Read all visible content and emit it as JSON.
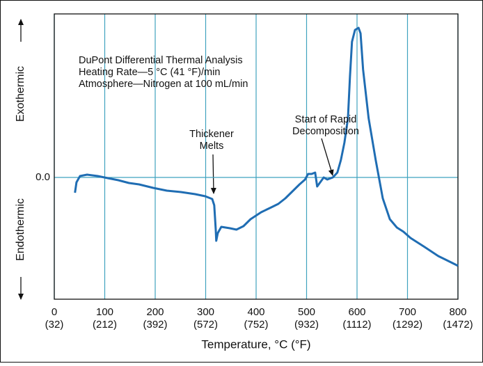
{
  "chart_data": {
    "type": "line",
    "xlabel": "Temperature, °C (°F)",
    "ylabel_top": "Exothermic",
    "ylabel_bottom": "Endothermic",
    "annotations": [
      {
        "lines": [
          "DuPont Differential Thermal Analysis",
          "Heating Rate—5 °C (41 °F)/min",
          "Atmosphere—Nitrogen at 100 mL/min"
        ]
      },
      {
        "lines": [
          "Thickener",
          "Melts"
        ]
      },
      {
        "lines": [
          "Start of Rapid",
          "Decomposition"
        ]
      }
    ],
    "xlim": [
      0,
      800
    ],
    "xticks": [
      0,
      100,
      200,
      300,
      400,
      500,
      600,
      700,
      800
    ],
    "xtick_secondary": [
      "(32)",
      "(212)",
      "(392)",
      "(572)",
      "(752)",
      "(932)",
      "(1112)",
      "(1292)",
      "(1472)"
    ],
    "ylim": [
      -1.75,
      2.35
    ],
    "yticks": [
      {
        "value": 0,
        "label": "0.0"
      }
    ],
    "grid": true,
    "series": [
      {
        "color": "#1f6db3",
        "x": [
          41,
          44,
          51,
          65,
          86,
          106,
          127,
          148,
          168,
          196,
          223,
          251,
          279,
          299,
          313,
          317,
          320,
          321,
          324,
          331,
          348,
          361,
          375,
          389,
          410,
          430,
          444,
          458,
          472,
          486,
          497,
          503,
          510,
          517,
          521,
          527,
          534,
          541,
          552,
          561,
          568,
          575,
          582,
          586,
          590,
          596,
          603,
          607,
          612,
          623,
          637,
          651,
          665,
          679,
          692,
          706,
          734,
          761,
          789,
          800
        ],
        "values": [
          -0.22,
          -0.07,
          0.02,
          0.04,
          0.02,
          -0.01,
          -0.04,
          -0.08,
          -0.1,
          -0.15,
          -0.19,
          -0.21,
          -0.24,
          -0.27,
          -0.31,
          -0.4,
          -0.75,
          -0.91,
          -0.8,
          -0.71,
          -0.73,
          -0.75,
          -0.7,
          -0.6,
          -0.5,
          -0.43,
          -0.38,
          -0.3,
          -0.2,
          -0.1,
          -0.03,
          0.05,
          0.05,
          0.07,
          -0.13,
          -0.07,
          0.0,
          -0.03,
          0.0,
          0.07,
          0.25,
          0.5,
          0.85,
          1.45,
          1.95,
          2.12,
          2.15,
          2.07,
          1.55,
          0.85,
          0.25,
          -0.3,
          -0.6,
          -0.72,
          -0.78,
          -0.87,
          -1.0,
          -1.13,
          -1.23,
          -1.27
        ]
      }
    ]
  }
}
